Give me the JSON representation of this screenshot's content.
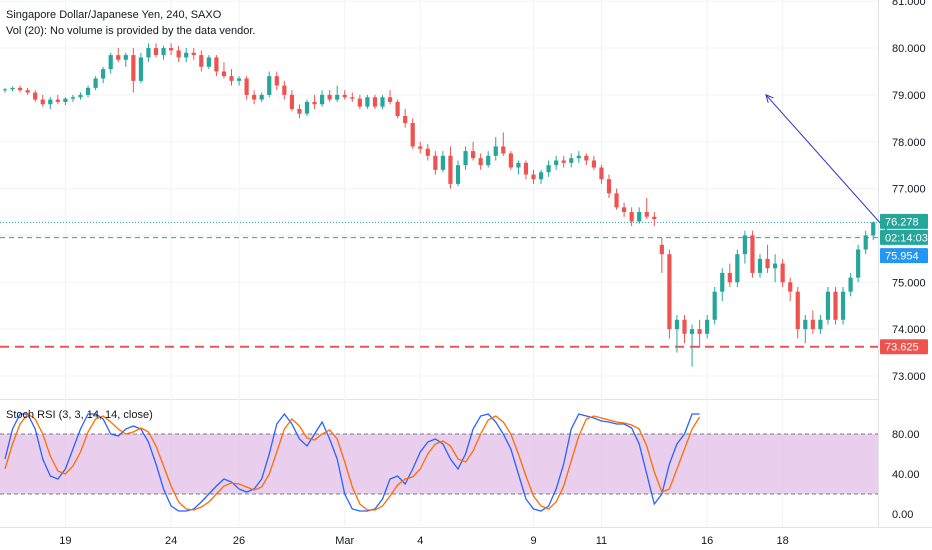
{
  "header": {
    "title": "Singapore Dollar/Japanese Yen, 240, SAXO",
    "volume_note": "Vol (20): No volume is provided by the data vendor."
  },
  "indicator": {
    "label": "Stoch RSI (3, 3, 14, 14, close)"
  },
  "colors": {
    "up": "#26a69a",
    "down": "#ef5350",
    "k_line": "#2962ff",
    "d_line": "#ff6d00",
    "band_fill": "#e1bee7",
    "arrow": "#2f2fc8",
    "support": "#ef5350",
    "current_price": "#26a69a"
  },
  "chart_data": [
    {
      "type": "candlestick",
      "title": "Singapore Dollar/Japanese Yen, 240, SAXO",
      "ylim": [
        72.5,
        81.0
      ],
      "y_ticks": [
        "73.000",
        "74.000",
        "75.000",
        "76.000",
        "77.000",
        "78.000",
        "79.000",
        "80.000",
        "81.000"
      ],
      "x_ticks": [
        "19",
        "24",
        "26",
        "Mar",
        "4",
        "9",
        "11",
        "16",
        "18"
      ],
      "grid": true,
      "price_labels": [
        {
          "value": 76.278,
          "text": "76.278",
          "kind": "last"
        },
        {
          "value": 76.0,
          "text": "02:14:03",
          "kind": "countdown"
        },
        {
          "value": 75.954,
          "text": "75.954",
          "kind": "level"
        },
        {
          "value": 73.625,
          "text": "73.625",
          "kind": "support"
        }
      ],
      "levels": [
        {
          "value": 76.278,
          "style": "dotted",
          "color": "#26a69a"
        },
        {
          "value": 75.954,
          "style": "dashed",
          "color": "#2196f3"
        },
        {
          "value": 73.625,
          "style": "dashed",
          "color": "#ef5350"
        }
      ],
      "arrow": {
        "from": 75.954,
        "to": 79.0
      },
      "ohlc": [
        [
          79.1,
          79.15,
          79.05,
          79.12
        ],
        [
          79.12,
          79.18,
          79.08,
          79.15
        ],
        [
          79.15,
          79.2,
          79.05,
          79.1
        ],
        [
          79.1,
          79.15,
          79.0,
          79.05
        ],
        [
          79.05,
          79.1,
          78.85,
          78.9
        ],
        [
          78.9,
          79.0,
          78.75,
          78.8
        ],
        [
          78.8,
          78.95,
          78.7,
          78.9
        ],
        [
          78.9,
          79.0,
          78.8,
          78.85
        ],
        [
          78.85,
          78.95,
          78.78,
          78.92
        ],
        [
          78.92,
          79.0,
          78.85,
          78.95
        ],
        [
          78.95,
          79.05,
          78.9,
          79.0
        ],
        [
          79.0,
          79.2,
          78.95,
          79.15
        ],
        [
          79.15,
          79.4,
          79.1,
          79.35
        ],
        [
          79.35,
          79.6,
          79.25,
          79.55
        ],
        [
          79.55,
          79.9,
          79.45,
          79.85
        ],
        [
          79.85,
          80.0,
          79.7,
          79.75
        ],
        [
          79.75,
          79.9,
          79.6,
          79.85
        ],
        [
          79.85,
          80.0,
          79.05,
          79.3
        ],
        [
          79.3,
          79.9,
          79.25,
          79.8
        ],
        [
          79.8,
          80.1,
          79.7,
          80.0
        ],
        [
          80.0,
          80.1,
          79.8,
          79.85
        ],
        [
          79.85,
          80.05,
          79.75,
          80.0
        ],
        [
          80.0,
          80.1,
          79.85,
          79.95
        ],
        [
          79.95,
          80.05,
          79.7,
          79.8
        ],
        [
          79.8,
          80.0,
          79.7,
          79.9
        ],
        [
          79.9,
          80.0,
          79.75,
          79.85
        ],
        [
          79.85,
          79.95,
          79.5,
          79.6
        ],
        [
          79.6,
          79.85,
          79.55,
          79.8
        ],
        [
          79.8,
          79.85,
          79.4,
          79.5
        ],
        [
          79.5,
          79.7,
          79.35,
          79.4
        ],
        [
          79.4,
          79.55,
          79.2,
          79.3
        ],
        [
          79.3,
          79.4,
          79.2,
          79.35
        ],
        [
          79.35,
          79.4,
          78.9,
          79.0
        ],
        [
          79.0,
          79.1,
          78.8,
          78.9
        ],
        [
          78.9,
          79.05,
          78.85,
          79.0
        ],
        [
          79.0,
          79.5,
          78.95,
          79.4
        ],
        [
          79.4,
          79.5,
          79.1,
          79.2
        ],
        [
          79.2,
          79.3,
          78.9,
          79.0
        ],
        [
          79.0,
          79.1,
          78.65,
          78.7
        ],
        [
          78.7,
          78.8,
          78.5,
          78.6
        ],
        [
          78.6,
          78.9,
          78.55,
          78.85
        ],
        [
          78.85,
          79.0,
          78.7,
          78.8
        ],
        [
          78.8,
          79.1,
          78.75,
          79.0
        ],
        [
          79.0,
          79.1,
          78.85,
          78.9
        ],
        [
          78.9,
          79.2,
          78.85,
          79.0
        ],
        [
          79.0,
          79.1,
          78.9,
          78.95
        ],
        [
          78.95,
          79.05,
          78.85,
          78.92
        ],
        [
          78.92,
          79.0,
          78.7,
          78.75
        ],
        [
          78.75,
          79.0,
          78.7,
          78.95
        ],
        [
          78.95,
          79.0,
          78.7,
          78.75
        ],
        [
          78.75,
          79.0,
          78.7,
          78.95
        ],
        [
          78.95,
          79.1,
          78.8,
          78.85
        ],
        [
          78.85,
          78.9,
          78.5,
          78.55
        ],
        [
          78.55,
          78.7,
          78.3,
          78.4
        ],
        [
          78.4,
          78.5,
          77.85,
          77.9
        ],
        [
          77.9,
          78.0,
          77.75,
          77.85
        ],
        [
          77.85,
          77.95,
          77.6,
          77.7
        ],
        [
          77.7,
          77.8,
          77.3,
          77.4
        ],
        [
          77.4,
          77.8,
          77.35,
          77.7
        ],
        [
          77.7,
          77.9,
          77.0,
          77.1
        ],
        [
          77.1,
          77.6,
          77.05,
          77.5
        ],
        [
          77.5,
          77.9,
          77.4,
          77.8
        ],
        [
          77.8,
          78.0,
          77.6,
          77.65
        ],
        [
          77.65,
          77.75,
          77.4,
          77.5
        ],
        [
          77.5,
          77.8,
          77.45,
          77.7
        ],
        [
          77.7,
          78.1,
          77.6,
          77.9
        ],
        [
          77.9,
          78.2,
          77.7,
          77.75
        ],
        [
          77.75,
          77.8,
          77.4,
          77.45
        ],
        [
          77.45,
          77.6,
          77.3,
          77.55
        ],
        [
          77.55,
          77.6,
          77.2,
          77.3
        ],
        [
          77.3,
          77.4,
          77.1,
          77.2
        ],
        [
          77.2,
          77.4,
          77.1,
          77.35
        ],
        [
          77.35,
          77.6,
          77.25,
          77.5
        ],
        [
          77.5,
          77.7,
          77.4,
          77.6
        ],
        [
          77.6,
          77.7,
          77.45,
          77.55
        ],
        [
          77.55,
          77.75,
          77.45,
          77.65
        ],
        [
          77.65,
          77.8,
          77.55,
          77.7
        ],
        [
          77.7,
          77.75,
          77.5,
          77.6
        ],
        [
          77.6,
          77.7,
          77.4,
          77.45
        ],
        [
          77.45,
          77.5,
          77.1,
          77.2
        ],
        [
          77.2,
          77.3,
          76.8,
          76.9
        ],
        [
          76.9,
          77.0,
          76.55,
          76.6
        ],
        [
          76.6,
          76.7,
          76.4,
          76.5
        ],
        [
          76.5,
          76.6,
          76.2,
          76.3
        ],
        [
          76.3,
          76.6,
          76.25,
          76.5
        ],
        [
          76.5,
          76.8,
          76.35,
          76.4
        ],
        [
          76.4,
          76.5,
          76.2,
          76.35
        ],
        [
          75.8,
          75.95,
          75.2,
          75.6
        ],
        [
          75.6,
          75.7,
          73.8,
          74.0
        ],
        [
          74.0,
          74.3,
          73.5,
          74.2
        ],
        [
          74.2,
          74.3,
          73.7,
          73.9
        ],
        [
          73.9,
          74.1,
          73.2,
          74.0
        ],
        [
          74.0,
          74.2,
          73.6,
          73.9
        ],
        [
          73.9,
          74.3,
          73.8,
          74.2
        ],
        [
          74.2,
          74.9,
          74.1,
          74.8
        ],
        [
          74.8,
          75.3,
          74.6,
          75.2
        ],
        [
          75.2,
          75.4,
          74.9,
          75.0
        ],
        [
          75.0,
          75.7,
          74.9,
          75.6
        ],
        [
          75.6,
          76.1,
          75.4,
          76.0
        ],
        [
          76.0,
          76.1,
          75.1,
          75.2
        ],
        [
          75.2,
          75.6,
          75.1,
          75.5
        ],
        [
          75.5,
          75.8,
          75.2,
          75.3
        ],
        [
          75.3,
          75.6,
          75.0,
          75.4
        ],
        [
          75.4,
          75.5,
          74.9,
          75.0
        ],
        [
          75.0,
          75.1,
          74.6,
          74.8
        ],
        [
          74.8,
          74.9,
          73.8,
          74.0
        ],
        [
          74.0,
          74.3,
          73.7,
          74.2
        ],
        [
          74.2,
          74.4,
          73.9,
          74.0
        ],
        [
          74.0,
          74.3,
          73.9,
          74.2
        ],
        [
          74.2,
          74.9,
          74.1,
          74.8
        ],
        [
          74.8,
          74.9,
          74.1,
          74.2
        ],
        [
          74.2,
          74.9,
          74.1,
          74.8
        ],
        [
          74.8,
          75.2,
          74.7,
          75.1
        ],
        [
          75.1,
          75.8,
          75.0,
          75.7
        ],
        [
          75.7,
          76.1,
          75.6,
          76.0
        ],
        [
          76.0,
          76.3,
          75.9,
          76.28
        ]
      ]
    },
    {
      "type": "line",
      "title": "Stoch RSI (3, 3, 14, 14, close)",
      "ylim": [
        -5,
        105
      ],
      "y_ticks": [
        "0.00",
        "40.00",
        "80.00"
      ],
      "band": [
        20,
        80
      ],
      "series": [
        {
          "name": "K",
          "values": [
            55,
            85,
            100,
            100,
            85,
            55,
            38,
            35,
            45,
            65,
            85,
            100,
            100,
            95,
            80,
            78,
            85,
            88,
            85,
            72,
            50,
            25,
            8,
            3,
            3,
            5,
            12,
            20,
            28,
            35,
            32,
            25,
            22,
            25,
            35,
            60,
            90,
            100,
            90,
            75,
            68,
            80,
            92,
            75,
            55,
            20,
            5,
            3,
            3,
            5,
            15,
            35,
            38,
            30,
            45,
            62,
            72,
            75,
            70,
            55,
            45,
            60,
            85,
            98,
            100,
            92,
            80,
            65,
            40,
            15,
            5,
            3,
            8,
            25,
            50,
            85,
            100,
            98,
            96,
            93,
            92,
            90,
            90,
            86,
            70,
            40,
            10,
            20,
            50,
            70,
            80,
            100,
            100
          ]
        },
        {
          "name": "D",
          "values": [
            45,
            70,
            90,
            100,
            95,
            80,
            58,
            43,
            40,
            48,
            62,
            82,
            95,
            98,
            92,
            85,
            80,
            82,
            86,
            82,
            68,
            48,
            28,
            12,
            5,
            4,
            7,
            12,
            20,
            28,
            31,
            30,
            27,
            24,
            27,
            40,
            62,
            85,
            95,
            88,
            76,
            74,
            80,
            84,
            75,
            52,
            27,
            10,
            4,
            4,
            8,
            18,
            29,
            35,
            37,
            45,
            60,
            70,
            73,
            68,
            55,
            52,
            63,
            80,
            94,
            98,
            92,
            80,
            60,
            38,
            18,
            8,
            5,
            12,
            28,
            53,
            78,
            95,
            98,
            96,
            94,
            92,
            91,
            89,
            85,
            68,
            42,
            22,
            25,
            45,
            65,
            85,
            97
          ]
        }
      ]
    }
  ]
}
